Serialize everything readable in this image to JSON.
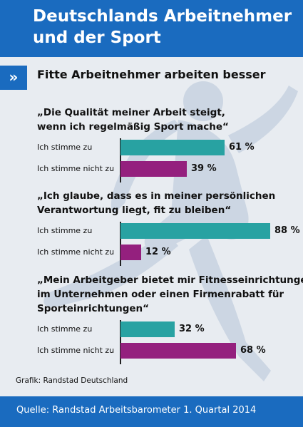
{
  "header": {
    "title_line1": "Deutschlands Arbeitnehmer",
    "title_line2": "und der Sport"
  },
  "subtitle": "Fitte Arbeitnehmer arbeiten besser",
  "chevron": "»",
  "colors": {
    "brand": "#1a6bbf",
    "agree": "#28a2a2",
    "disagree": "#94207e",
    "background": "#e8ecf1"
  },
  "chart_data": {
    "type": "bar",
    "orientation": "horizontal",
    "unit": "%",
    "groups": [
      {
        "question_lines": [
          "„Die Qualität meiner Arbeit steigt,",
          "wenn ich regelmäßig Sport mache“"
        ],
        "rows": [
          {
            "label": "Ich stimme zu",
            "value": 61,
            "display": "61 %"
          },
          {
            "label": "Ich stimme nicht zu",
            "value": 39,
            "display": "39 %"
          }
        ]
      },
      {
        "question_lines": [
          "„Ich glaube, dass es in meiner persönlichen",
          "Verantwortung liegt, fit zu bleiben“"
        ],
        "rows": [
          {
            "label": "Ich stimme zu",
            "value": 88,
            "display": "88 %"
          },
          {
            "label": "Ich stimme nicht zu",
            "value": 12,
            "display": "12 %"
          }
        ]
      },
      {
        "question_lines": [
          "„Mein Arbeitgeber bietet mir Fitnesseinrichtungen",
          "im Unternehmen oder einen Firmenrabatt für",
          "Sporteinrichtungen“"
        ],
        "rows": [
          {
            "label": "Ich stimme zu",
            "value": 32,
            "display": "32 %"
          },
          {
            "label": "Ich stimme nicht zu",
            "value": 68,
            "display": "68 %"
          }
        ]
      }
    ]
  },
  "credit": "Grafik: Randstad Deutschland",
  "footer": {
    "source": "Quelle: Randstad Arbeitsbarometer 1. Quartal 2014"
  }
}
